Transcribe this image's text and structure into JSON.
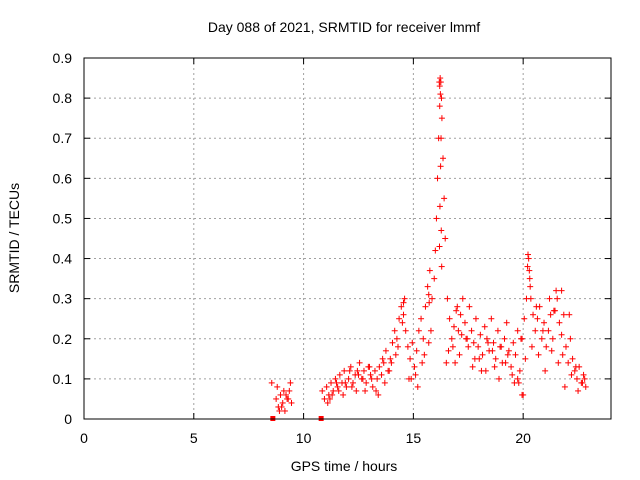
{
  "chart_data": {
    "type": "scatter",
    "title": "Day 088 of 2021, SRMTID for receiver lmmf",
    "xlabel": "GPS time / hours",
    "ylabel": "SRMTID / TECUs",
    "xlim": [
      0,
      24
    ],
    "ylim": [
      0,
      0.9
    ],
    "x_ticks": [
      0,
      5,
      10,
      15,
      20
    ],
    "x_tick_labels": [
      "0",
      "5",
      "10",
      "15",
      "20"
    ],
    "y_ticks": [
      0,
      0.1,
      0.2,
      0.3,
      0.4,
      0.5,
      0.6,
      0.7,
      0.8,
      0.9
    ],
    "y_tick_labels": [
      "0",
      "0.1",
      "0.2",
      "0.3",
      "0.4",
      "0.5",
      "0.6",
      "0.7",
      "0.8",
      "0.9"
    ],
    "grid": true,
    "marker": "+",
    "color": "#ff0000",
    "series": [
      {
        "name": "SRMTID",
        "x": [
          8.55,
          8.75,
          8.85,
          8.95,
          9.05,
          9.15,
          9.25,
          9.35,
          9.45,
          8.8,
          9.0,
          9.2,
          9.4,
          8.9,
          9.1,
          9.3,
          10.85,
          10.95,
          11.05,
          11.15,
          11.25,
          11.35,
          11.45,
          11.55,
          11.65,
          11.75,
          11.85,
          11.95,
          12.05,
          12.15,
          12.25,
          12.35,
          12.45,
          12.55,
          12.65,
          12.75,
          12.85,
          12.95,
          13.05,
          13.15,
          13.25,
          13.35,
          13.45,
          13.55,
          13.65,
          13.75,
          13.85,
          13.95,
          14.05,
          14.15,
          14.25,
          14.35,
          14.45,
          14.55,
          14.65,
          14.75,
          14.85,
          14.95,
          15.05,
          15.15,
          15.25,
          15.35,
          15.45,
          15.55,
          15.65,
          15.75,
          15.85,
          15.95,
          16.0,
          16.05,
          16.1,
          16.15,
          16.2,
          16.22,
          16.25,
          16.28,
          16.3,
          16.35,
          16.4,
          16.45,
          16.55,
          16.65,
          16.75,
          16.85,
          16.95,
          17.05,
          17.15,
          17.25,
          17.35,
          17.45,
          17.55,
          17.65,
          17.75,
          17.85,
          17.95,
          18.05,
          18.15,
          18.25,
          18.35,
          18.45,
          18.55,
          18.65,
          18.75,
          18.85,
          18.95,
          19.05,
          19.15,
          19.25,
          19.35,
          19.45,
          19.55,
          19.65,
          19.75,
          19.85,
          19.95,
          20.05,
          20.15,
          20.2,
          20.25,
          20.3,
          20.35,
          20.45,
          20.55,
          20.65,
          20.75,
          20.85,
          20.95,
          21.05,
          21.15,
          21.25,
          21.35,
          21.45,
          21.55,
          21.65,
          21.75,
          21.85,
          21.95,
          22.05,
          22.15,
          22.25,
          22.35,
          22.45,
          22.55,
          22.65,
          22.75,
          22.85,
          11.1,
          11.3,
          11.6,
          11.9,
          12.2,
          12.5,
          12.8,
          13.1,
          13.4,
          13.7,
          14.0,
          14.3,
          14.6,
          14.9,
          15.2,
          15.5,
          15.8,
          16.5,
          16.8,
          17.1,
          17.4,
          17.7,
          18.0,
          18.3,
          18.6,
          18.9,
          19.2,
          19.5,
          19.8,
          20.1,
          20.4,
          20.7,
          21.0,
          21.3,
          21.6,
          21.9,
          22.2,
          22.5,
          22.8,
          11.2,
          11.5,
          11.8,
          12.1,
          12.4,
          12.7,
          13.0,
          13.3,
          13.6,
          13.9,
          14.2,
          14.5,
          14.8,
          15.1,
          15.4,
          15.7,
          16.6,
          16.9,
          17.2,
          17.5,
          17.8,
          18.1,
          18.4,
          18.7,
          19.0,
          19.3,
          19.6,
          19.9,
          20.0,
          20.6,
          20.9,
          21.2,
          21.5,
          21.8,
          22.1,
          22.4,
          22.7,
          16.18,
          16.2,
          16.23,
          16.26,
          16.24,
          16.21,
          16.19,
          16.27,
          16.29,
          20.22,
          20.28,
          20.32,
          14.55,
          15.7,
          15.72,
          17.0,
          19.75,
          19.95,
          21.4,
          21.75
        ],
        "y": [
          0.09,
          0.05,
          0.03,
          0.06,
          0.04,
          0.02,
          0.05,
          0.07,
          0.04,
          0.08,
          0.03,
          0.06,
          0.09,
          0.02,
          0.07,
          0.05,
          0.07,
          0.05,
          0.08,
          0.06,
          0.09,
          0.07,
          0.1,
          0.08,
          0.11,
          0.09,
          0.12,
          0.08,
          0.1,
          0.13,
          0.09,
          0.11,
          0.12,
          0.14,
          0.1,
          0.12,
          0.09,
          0.13,
          0.11,
          0.08,
          0.12,
          0.1,
          0.13,
          0.11,
          0.14,
          0.17,
          0.12,
          0.15,
          0.19,
          0.22,
          0.2,
          0.25,
          0.28,
          0.26,
          0.22,
          0.18,
          0.15,
          0.19,
          0.13,
          0.17,
          0.22,
          0.25,
          0.2,
          0.28,
          0.33,
          0.37,
          0.3,
          0.35,
          0.42,
          0.5,
          0.6,
          0.7,
          0.78,
          0.85,
          0.84,
          0.8,
          0.75,
          0.65,
          0.55,
          0.45,
          0.3,
          0.25,
          0.2,
          0.23,
          0.27,
          0.22,
          0.26,
          0.3,
          0.24,
          0.2,
          0.28,
          0.22,
          0.19,
          0.25,
          0.18,
          0.21,
          0.16,
          0.23,
          0.2,
          0.17,
          0.25,
          0.19,
          0.15,
          0.22,
          0.18,
          0.14,
          0.2,
          0.24,
          0.17,
          0.13,
          0.19,
          0.16,
          0.22,
          0.12,
          0.2,
          0.25,
          0.3,
          0.38,
          0.4,
          0.35,
          0.3,
          0.26,
          0.22,
          0.25,
          0.28,
          0.2,
          0.24,
          0.18,
          0.22,
          0.26,
          0.2,
          0.27,
          0.3,
          0.24,
          0.21,
          0.26,
          0.18,
          0.14,
          0.2,
          0.15,
          0.12,
          0.1,
          0.13,
          0.09,
          0.11,
          0.08,
          0.04,
          0.06,
          0.07,
          0.09,
          0.08,
          0.11,
          0.07,
          0.1,
          0.06,
          0.09,
          0.14,
          0.18,
          0.3,
          0.1,
          0.08,
          0.16,
          0.22,
          0.14,
          0.18,
          0.16,
          0.2,
          0.13,
          0.15,
          0.12,
          0.17,
          0.1,
          0.14,
          0.11,
          0.09,
          0.15,
          0.18,
          0.16,
          0.12,
          0.17,
          0.14,
          0.08,
          0.11,
          0.07,
          0.1,
          0.05,
          0.09,
          0.06,
          0.12,
          0.07,
          0.1,
          0.13,
          0.07,
          0.15,
          0.12,
          0.16,
          0.24,
          0.1,
          0.11,
          0.14,
          0.19,
          0.17,
          0.14,
          0.21,
          0.18,
          0.15,
          0.12,
          0.19,
          0.13,
          0.18,
          0.16,
          0.09,
          0.2,
          0.06,
          0.28,
          0.22,
          0.3,
          0.32,
          0.16,
          0.26,
          0.13,
          0.09,
          0.84,
          0.83,
          0.81,
          0.7,
          0.63,
          0.53,
          0.43,
          0.47,
          0.38,
          0.41,
          0.37,
          0.33,
          0.29,
          0.31,
          0.29,
          0.28,
          0.1,
          0.06,
          0.27,
          0.32
        ],
        "annotations": [
          {
            "x": 8.6,
            "y": 0.0,
            "marker": "filled-square"
          },
          {
            "x": 10.8,
            "y": 0.0,
            "marker": "filled-square"
          }
        ]
      }
    ]
  }
}
